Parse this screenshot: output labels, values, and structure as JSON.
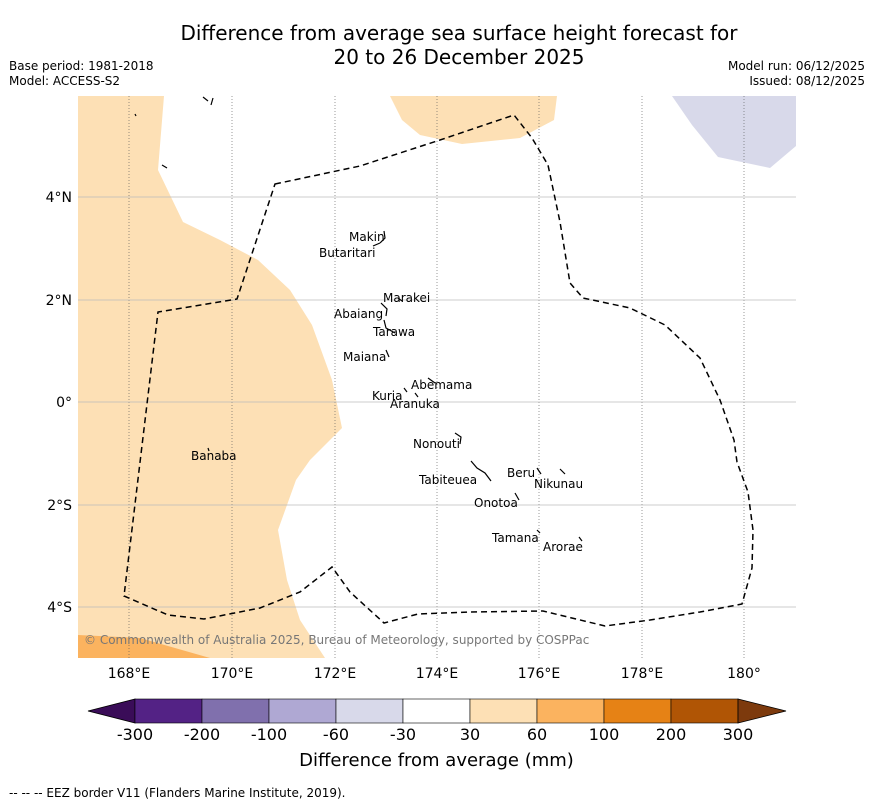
{
  "title_line1": "Difference from average sea surface height forecast for",
  "title_line2": "20 to 26 December 2025",
  "meta_left": {
    "base_period": "Base period: 1981-2018",
    "model": "Model: ACCESS-S2"
  },
  "meta_right": {
    "model_run": "Model run: 06/12/2025",
    "issued": "Issued: 08/12/2025"
  },
  "map": {
    "lon_ticks": [
      "168°E",
      "170°E",
      "172°E",
      "174°E",
      "176°E",
      "178°E",
      "180°"
    ],
    "lat_ticks": [
      "4°N",
      "2°N",
      "0°",
      "2°S",
      "4°S"
    ],
    "places": [
      "Makin",
      "Butaritari",
      "Marakei",
      "Abaiang",
      "Tarawa",
      "Maiana",
      "Abemama",
      "Kuria",
      "Aranuka",
      "Banaba",
      "Nonouti",
      "Tabiteuea",
      "Beru",
      "Nikunau",
      "Onotoa",
      "Tamana",
      "Arorae"
    ],
    "copyright": "© Commonwealth of Australia 2025, Bureau of Meteorology, supported by COSPPac"
  },
  "colorbar": {
    "colors": [
      "#3a0c58",
      "#532285",
      "#8070ad",
      "#afa8d3",
      "#d8d9ea",
      "#ffffff",
      "#fde0b5",
      "#fbb35f",
      "#e68215",
      "#b05505",
      "#7d3a0d"
    ],
    "tick_labels": [
      "-300",
      "-200",
      "-100",
      "-60",
      "-30",
      "30",
      "60",
      "100",
      "200",
      "300"
    ],
    "title": "Difference from average (mm)"
  },
  "footer": "--  --  -- EEZ border V11 (Flanders Marine Institute, 2019)."
}
